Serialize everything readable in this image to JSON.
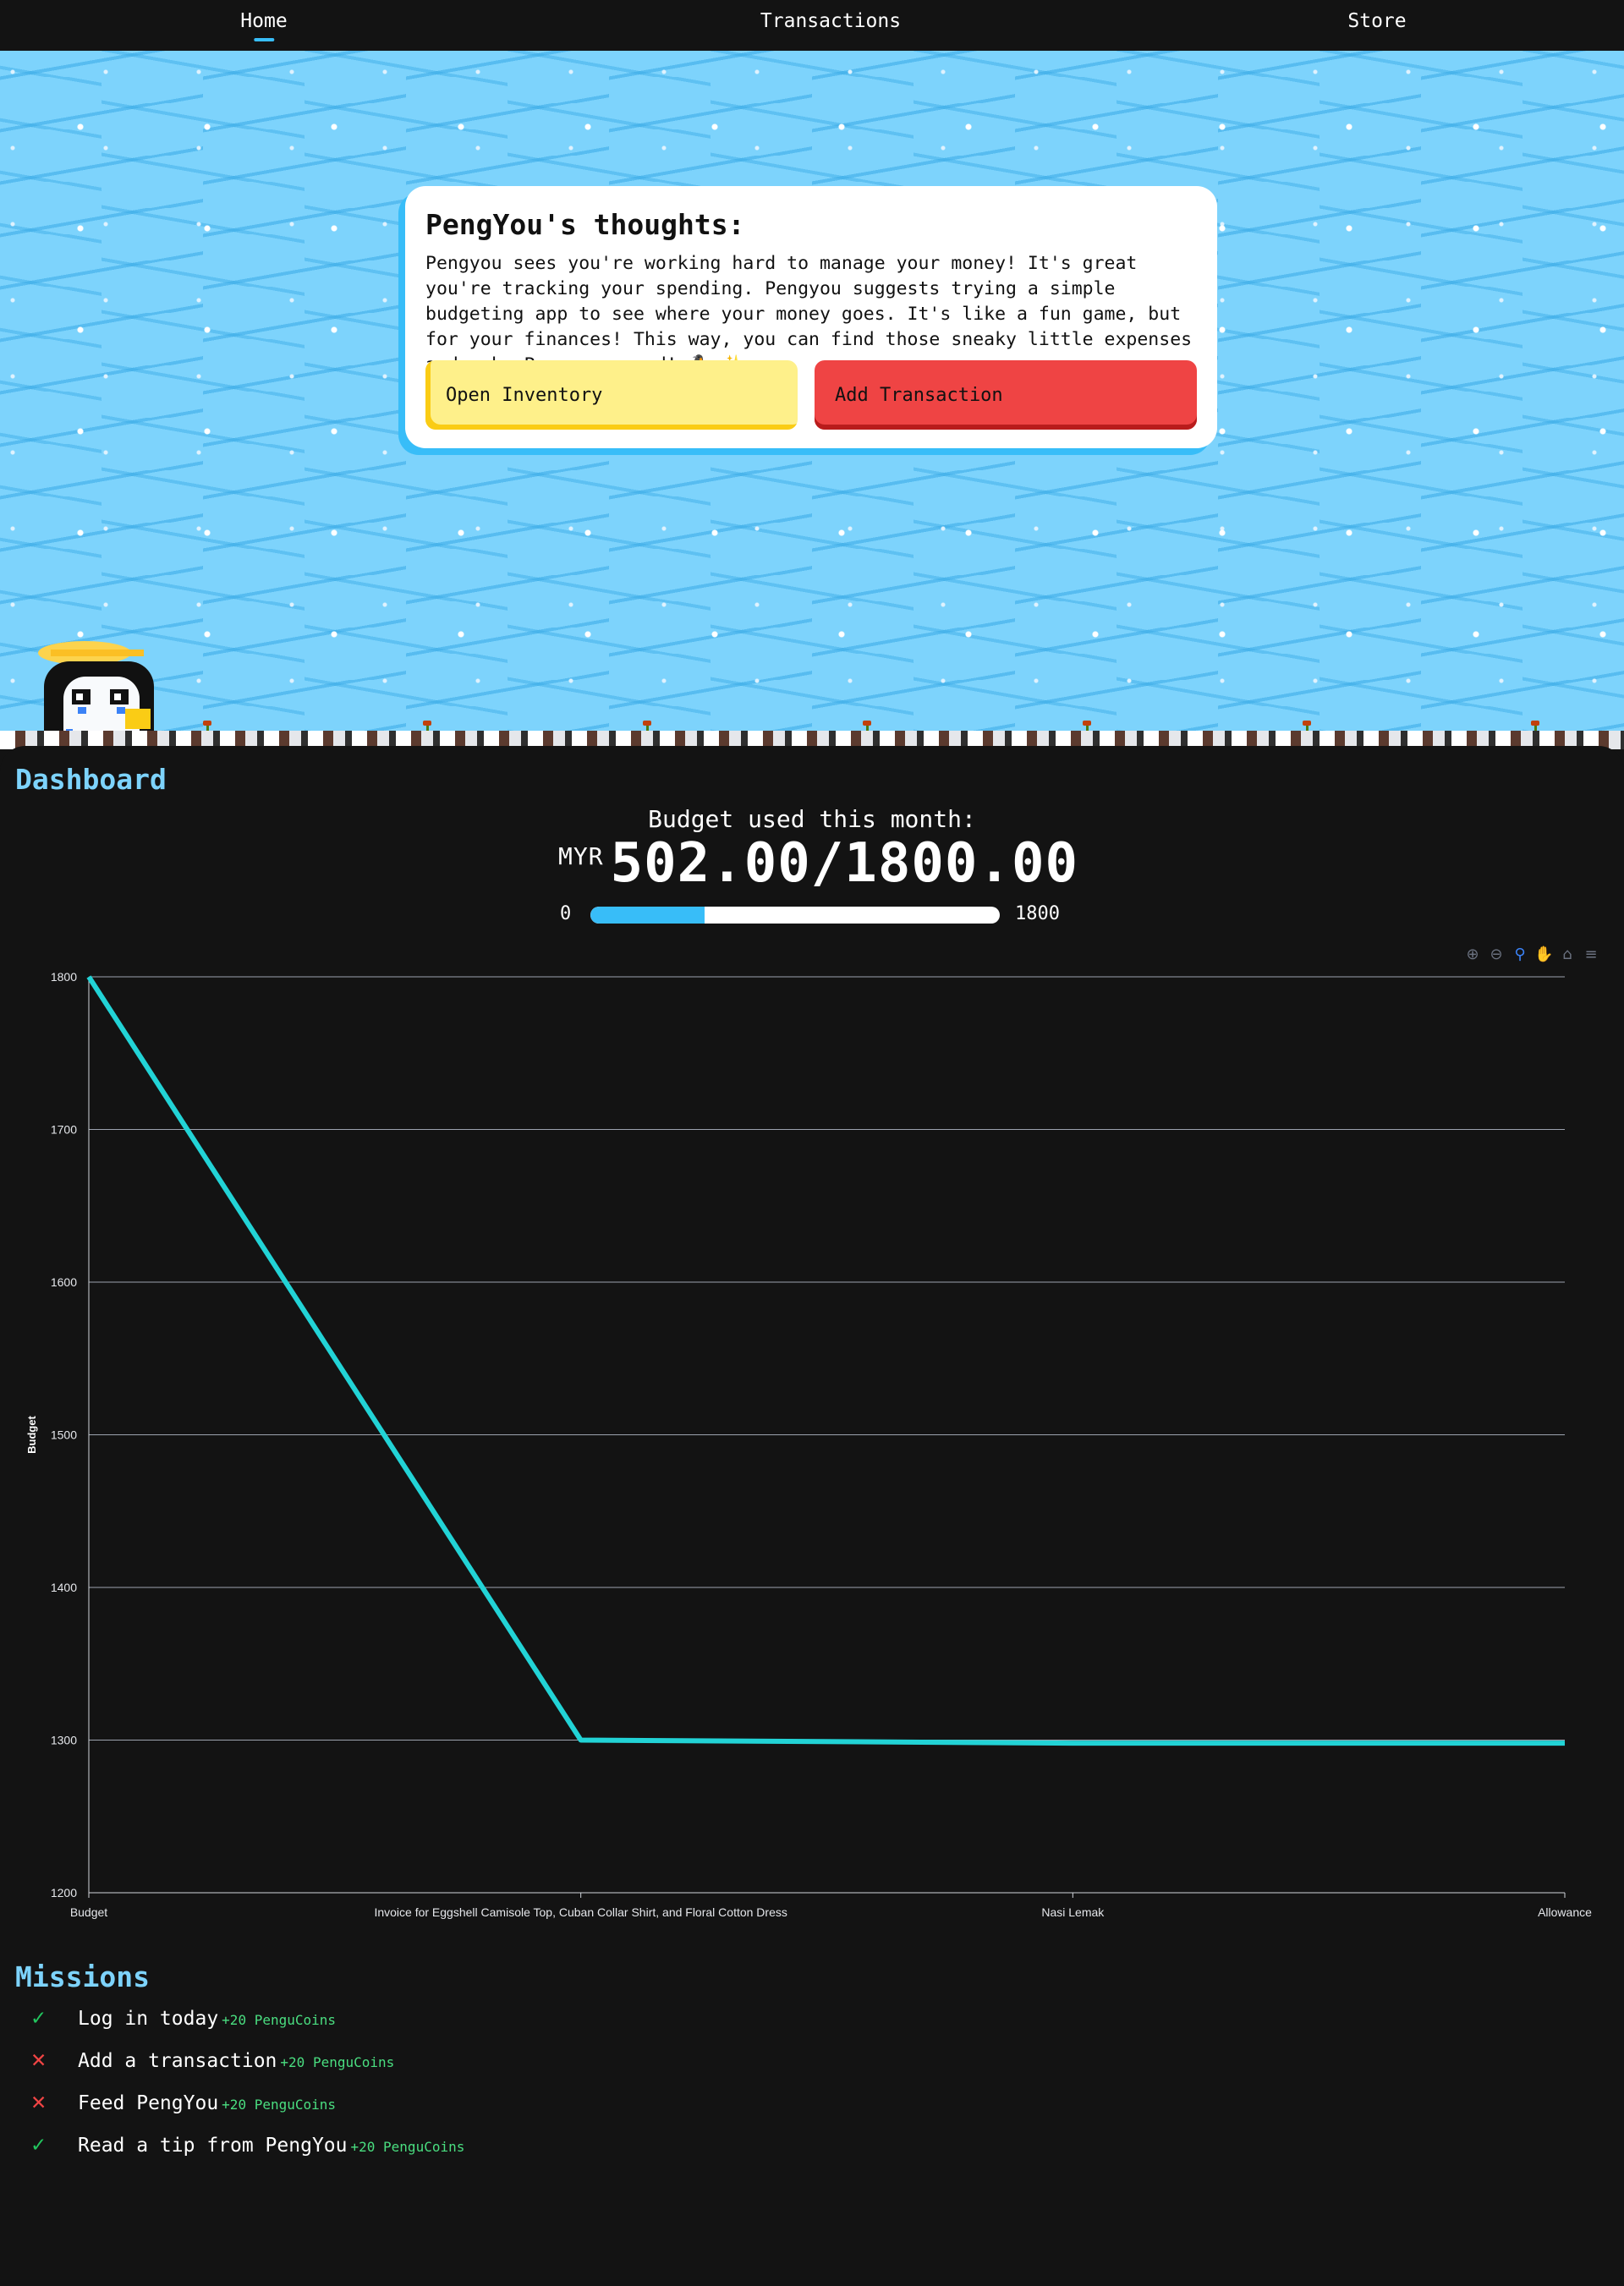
{
  "nav": {
    "items": [
      {
        "label": "Home",
        "active": true
      },
      {
        "label": "Transactions",
        "active": false
      },
      {
        "label": "Store",
        "active": false
      }
    ]
  },
  "thoughts": {
    "title": "PengYou's thoughts:",
    "text": "Pengyou sees you're working hard to manage your money! It's great you're tracking your spending. Pengyou suggests trying a simple budgeting app to see where your money goes. It's like a fun game, but for your finances! This way, you can find those sneaky little expenses and make Pengyou proud! 🐧 ✨",
    "open_inventory_label": "Open Inventory",
    "add_transaction_label": "Add Transaction"
  },
  "dashboard": {
    "title": "Dashboard",
    "budget_label": "Budget used this month:",
    "currency": "MYR",
    "budget_value": "502.00/1800.00",
    "progress_min": "0",
    "progress_max": "1800",
    "progress_fraction": 0.279
  },
  "toolbar": {
    "icons": [
      "zoom-in-icon",
      "zoom-out-icon",
      "zoom-selection-icon",
      "pan-icon",
      "home-reset-icon",
      "menu-icon"
    ]
  },
  "chart_data": {
    "type": "line",
    "categories": [
      "Budget",
      "Invoice for Eggshell Camisole Top, Cuban Collar Shirt, and Floral Cotton Dress",
      "Nasi Lemak",
      "Allowance"
    ],
    "values": [
      1800,
      1300,
      1298,
      1298
    ],
    "ylabel": "Budget",
    "ylim": [
      1200,
      1800
    ],
    "yticks": [
      "1200",
      "1300",
      "1400",
      "1500",
      "1600",
      "1700",
      "1800"
    ],
    "grid": true,
    "color": "#22d3d6"
  },
  "missions": {
    "title": "Missions",
    "items": [
      {
        "label": "Log in today",
        "reward": "+20 PenguCoins",
        "done": true,
        "mark": "✓"
      },
      {
        "label": "Add a transaction",
        "reward": "+20 PenguCoins",
        "done": false,
        "mark": "✕"
      },
      {
        "label": "Feed PengYou",
        "reward": "+20 PenguCoins",
        "done": false,
        "mark": "✕"
      },
      {
        "label": "Read a tip from PengYou",
        "reward": "+20 PenguCoins",
        "done": true,
        "mark": "✓"
      }
    ]
  }
}
